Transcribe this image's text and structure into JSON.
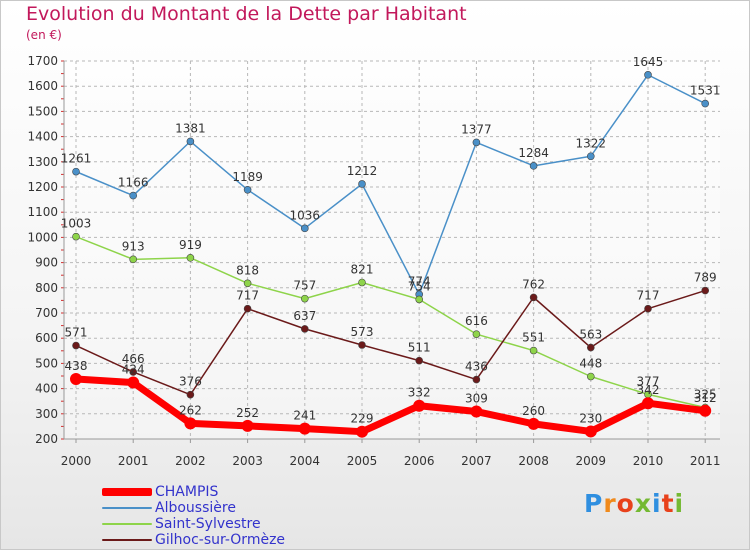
{
  "chart_data": {
    "type": "line",
    "title": "Evolution du Montant de la Dette par Habitant",
    "subtitle": "(en €)",
    "categories": [
      "2000",
      "2001",
      "2002",
      "2003",
      "2004",
      "2005",
      "2006",
      "2007",
      "2008",
      "2009",
      "2010",
      "2011"
    ],
    "ylim": [
      200,
      1700
    ],
    "yticks": [
      200,
      300,
      400,
      500,
      600,
      700,
      800,
      900,
      1000,
      1100,
      1200,
      1300,
      1400,
      1500,
      1600,
      1700
    ],
    "grid": true,
    "legend_position": "bottom-left",
    "series": [
      {
        "name": "CHAMPIS",
        "color": "#ff0000",
        "values": [
          438,
          424,
          262,
          252,
          241,
          229,
          332,
          309,
          260,
          230,
          342,
          312
        ]
      },
      {
        "name": "Alboussière",
        "color": "#4a90c8",
        "values": [
          1261,
          1166,
          1381,
          1189,
          1036,
          1212,
          774,
          1377,
          1284,
          1322,
          1645,
          1531
        ]
      },
      {
        "name": "Saint-Sylvestre",
        "color": "#8ed44a",
        "values": [
          1003,
          913,
          919,
          818,
          757,
          821,
          754,
          616,
          551,
          448,
          377,
          325
        ]
      },
      {
        "name": "Gilhoc-sur-Ormèze",
        "color": "#6b1a1a",
        "values": [
          571,
          466,
          376,
          717,
          637,
          573,
          511,
          436,
          762,
          563,
          717,
          789
        ]
      }
    ]
  },
  "logo": {
    "text": "Proxiti",
    "letters": [
      "P",
      "r",
      "o",
      "x",
      "i",
      "t",
      "i"
    ],
    "colors": [
      "#2f8fe0",
      "#f08a1c",
      "#e8411b",
      "#74b932",
      "#2f8fe0",
      "#e8411b",
      "#74b932"
    ]
  }
}
